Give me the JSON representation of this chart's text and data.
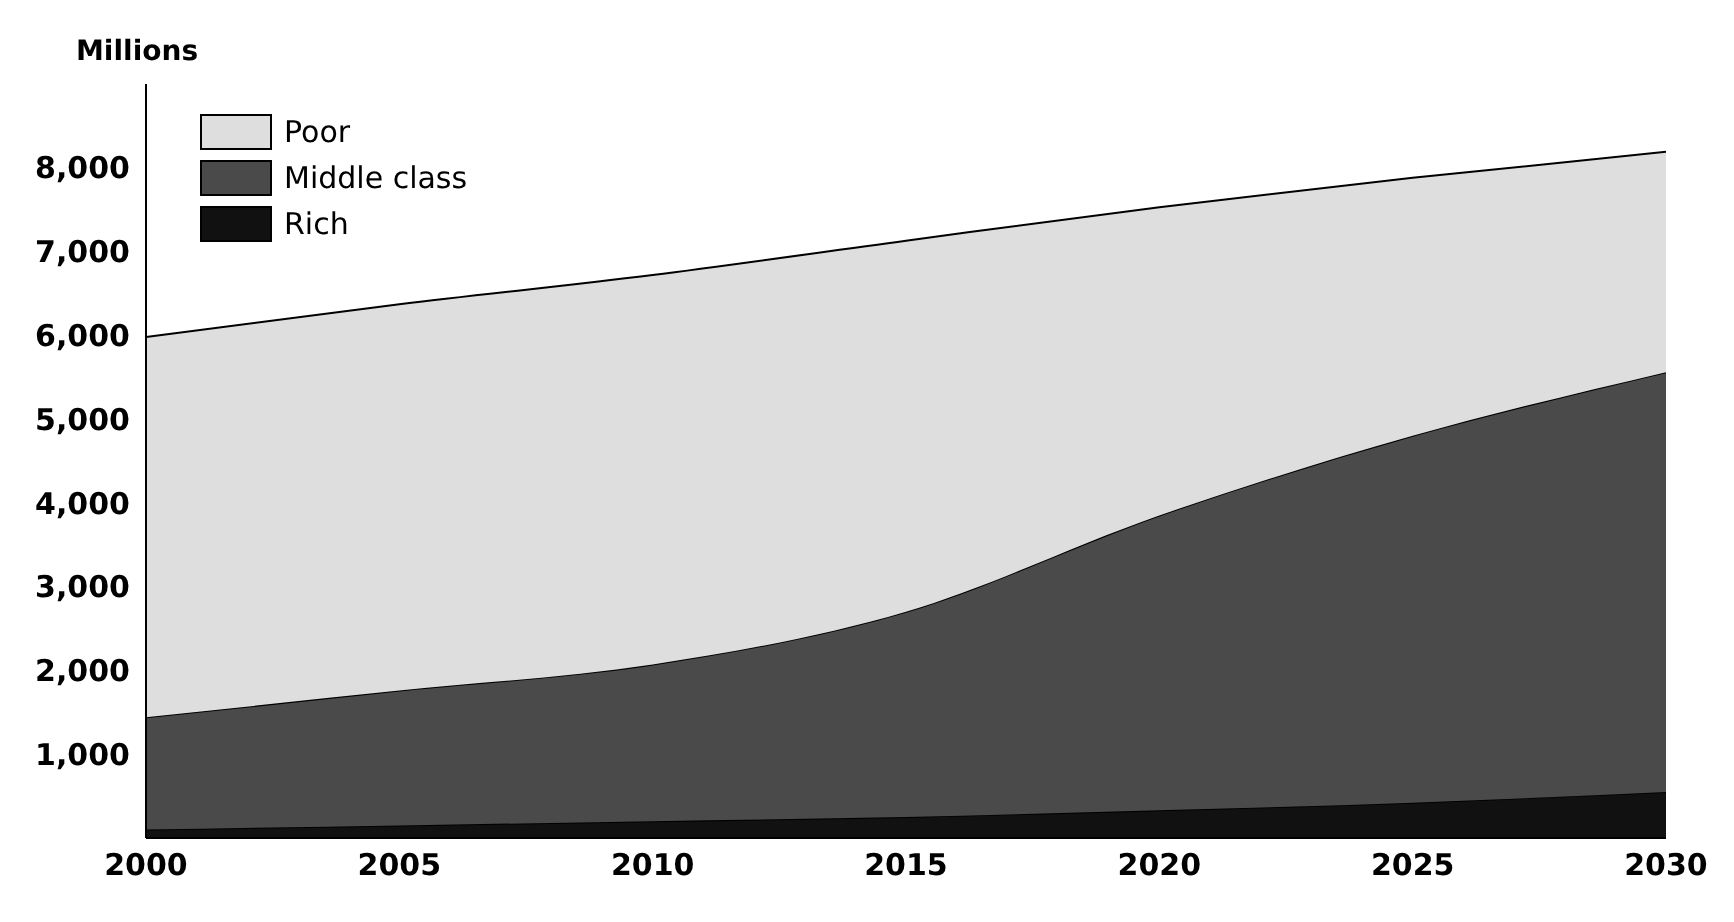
{
  "chart_data": {
    "type": "area",
    "stacked": true,
    "ylabel": "Millions",
    "x": [
      2000,
      2005,
      2010,
      2015,
      2020,
      2025,
      2030
    ],
    "series": [
      {
        "name": "Rich",
        "color": "#111111",
        "values": [
          100,
          150,
          200,
          250,
          330,
          420,
          550
        ]
      },
      {
        "name": "Middle class",
        "color": "#4a4a4a",
        "values": [
          1340,
          1610,
          1870,
          2450,
          3520,
          4380,
          5010
        ]
      },
      {
        "name": "Poor",
        "color": "#dedede",
        "values": [
          4540,
          4610,
          4650,
          4430,
          3680,
          3080,
          2630
        ]
      }
    ],
    "xlim": [
      2000,
      2030
    ],
    "xticks": [
      2000,
      2005,
      2010,
      2015,
      2020,
      2025,
      2030
    ],
    "ylim": [
      0,
      9000
    ],
    "yticks": [
      {
        "value": 1000,
        "label": "1,000"
      },
      {
        "value": 2000,
        "label": "2,000"
      },
      {
        "value": 3000,
        "label": "3,000"
      },
      {
        "value": 4000,
        "label": "4,000"
      },
      {
        "value": 5000,
        "label": "5,000"
      },
      {
        "value": 6000,
        "label": "6,000"
      },
      {
        "value": 7000,
        "label": "7,000"
      },
      {
        "value": 8000,
        "label": "8,000"
      }
    ],
    "grid": false,
    "legend": "top left"
  }
}
